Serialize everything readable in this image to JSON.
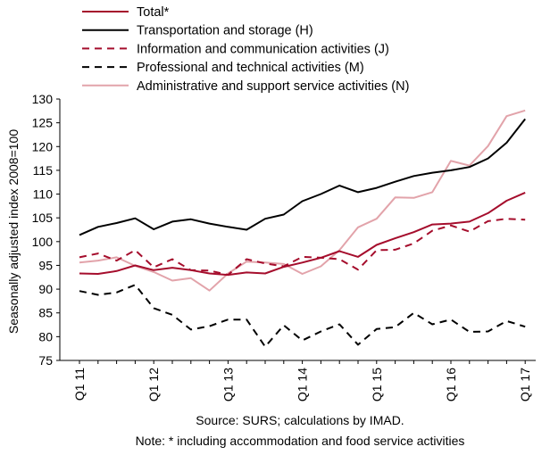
{
  "chart_data": {
    "type": "line",
    "title": "",
    "ylabel": "Seasonally adjusted index 2008=100",
    "xlabel": "",
    "ylim": [
      75,
      130
    ],
    "yticks": [
      75,
      80,
      85,
      90,
      95,
      100,
      105,
      110,
      115,
      120,
      125,
      130
    ],
    "x_tick_labels": [
      "Q1 11",
      "Q1 12",
      "Q1 13",
      "Q1 14",
      "Q1 15",
      "Q1 16",
      "Q1 17"
    ],
    "x": [
      "Q1 11",
      "Q2 11",
      "Q3 11",
      "Q4 11",
      "Q1 12",
      "Q2 12",
      "Q3 12",
      "Q4 12",
      "Q1 13",
      "Q2 13",
      "Q3 13",
      "Q4 13",
      "Q1 14",
      "Q2 14",
      "Q3 14",
      "Q4 14",
      "Q1 15",
      "Q2 15",
      "Q3 15",
      "Q4 15",
      "Q1 16",
      "Q2 16",
      "Q3 16",
      "Q4 16",
      "Q1 17"
    ],
    "grid": false,
    "legend_position": "top",
    "series": [
      {
        "name": "Total*",
        "color": "#a50d2c",
        "dash": "solid",
        "width": 2,
        "values": [
          93.3,
          93.2,
          93.8,
          95.0,
          94.0,
          94.5,
          94.0,
          93.3,
          93.0,
          93.5,
          93.3,
          94.7,
          95.6,
          96.6,
          98.0,
          96.8,
          99.3,
          100.7,
          102.0,
          103.6,
          103.8,
          104.2,
          106.0,
          108.6,
          110.3
        ]
      },
      {
        "name": "Transportation and storage (H)",
        "color": "#000000",
        "dash": "solid",
        "width": 2,
        "values": [
          101.4,
          103.1,
          103.9,
          104.9,
          102.6,
          104.2,
          104.7,
          103.8,
          103.1,
          102.5,
          104.8,
          105.7,
          108.5,
          110.0,
          111.8,
          110.4,
          111.3,
          112.6,
          113.8,
          114.5,
          115.0,
          115.7,
          117.5,
          120.8,
          125.8
        ]
      },
      {
        "name": "Information and communication activities (J)",
        "color": "#a50d2c",
        "dash": "dashed",
        "width": 2,
        "values": [
          96.7,
          97.5,
          96.0,
          98.2,
          94.6,
          96.3,
          94.0,
          93.9,
          93.0,
          96.3,
          95.4,
          94.8,
          96.8,
          96.6,
          96.3,
          94.1,
          98.2,
          98.3,
          99.6,
          102.3,
          103.4,
          102.1,
          104.3,
          104.8,
          104.6
        ]
      },
      {
        "name": "Professional and technical activities (M)",
        "color": "#000000",
        "dash": "dashed",
        "width": 2,
        "values": [
          89.6,
          88.8,
          89.3,
          90.9,
          86.0,
          84.6,
          81.5,
          82.2,
          83.6,
          83.6,
          77.9,
          82.4,
          79.2,
          81.1,
          82.6,
          78.3,
          81.6,
          82.0,
          85.0,
          82.6,
          83.6,
          81.0,
          81.1,
          83.3,
          82.1
        ]
      },
      {
        "name": "Administrative and support service activities (N)",
        "color": "#e2a3aa",
        "dash": "solid",
        "width": 2,
        "values": [
          95.6,
          96.0,
          96.7,
          94.9,
          93.6,
          91.8,
          92.3,
          89.7,
          93.3,
          95.8,
          95.6,
          95.3,
          93.2,
          94.8,
          98.2,
          103.0,
          104.8,
          109.3,
          109.2,
          110.4,
          117.0,
          116.0,
          120.1,
          126.4,
          127.6
        ]
      }
    ]
  },
  "notes": {
    "source": "Source: SURS; calculations by IMAD.",
    "note": "Note: * including accommodation and food service activities"
  }
}
